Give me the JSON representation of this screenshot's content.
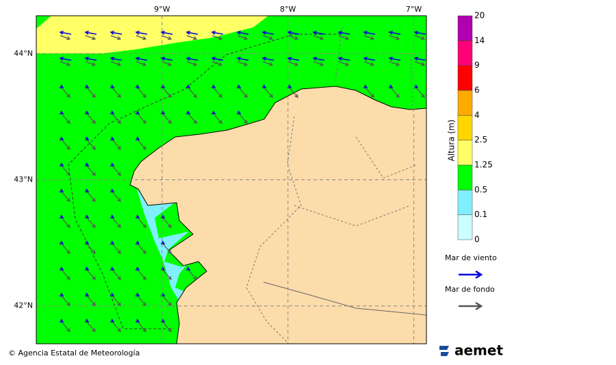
{
  "map": {
    "lon_range": [
      -10,
      -6.9
    ],
    "lat_range": [
      41.7,
      44.3
    ],
    "lon_ticks": [
      {
        "value": -9,
        "label": "9°W"
      },
      {
        "value": -8,
        "label": "8°W"
      },
      {
        "value": -7,
        "label": "7°W"
      }
    ],
    "lat_ticks": [
      {
        "value": 44,
        "label": "44°N"
      },
      {
        "value": 43,
        "label": "43°N"
      },
      {
        "value": 42,
        "label": "42°N"
      }
    ]
  },
  "colorbar": {
    "title": "Altura (m)",
    "levels": [
      0,
      0.1,
      0.5,
      1.25,
      2.5,
      4,
      6,
      9,
      14,
      20
    ],
    "colors": [
      "#ccffff",
      "#80f0ff",
      "#00ff00",
      "#ffff66",
      "#ffd700",
      "#ffaa00",
      "#ff0000",
      "#ff0077",
      "#b000b0"
    ]
  },
  "legend": {
    "items": [
      {
        "name": "Mar de viento",
        "color": "#0000dd"
      },
      {
        "name": "Mar de fondo",
        "color": "#555555"
      }
    ]
  },
  "footer": {
    "credit": "© Agencia Estatal de Meteorología",
    "logo": "aemet"
  }
}
